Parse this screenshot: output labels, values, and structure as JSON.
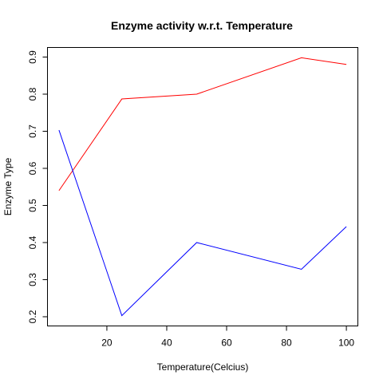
{
  "chart_data": {
    "type": "line",
    "title": "Enzyme activity w.r.t. Temperature",
    "xlabel": "Temperature(Celcius)",
    "ylabel": "Enzyme Type",
    "x": [
      4,
      25,
      50,
      85,
      100
    ],
    "series": [
      {
        "color": "#ff0000",
        "values": [
          0.54,
          0.787,
          0.8,
          0.898,
          0.88
        ]
      },
      {
        "color": "#0000ff",
        "values": [
          0.703,
          0.203,
          0.4,
          0.328,
          0.443
        ]
      }
    ],
    "xlim": [
      0.16,
      103.84
    ],
    "ylim": [
      0.1752,
      0.9258
    ],
    "xticks": [
      20,
      40,
      60,
      80,
      100
    ],
    "yticks": [
      0.2,
      0.3,
      0.4,
      0.5,
      0.6,
      0.7,
      0.8,
      0.9
    ],
    "grid": false,
    "legend": "none"
  }
}
